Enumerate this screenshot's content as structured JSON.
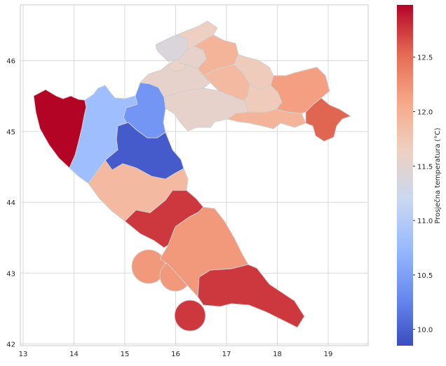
{
  "chart_data": {
    "type": "choropleth",
    "xlim": [
      12.9,
      19.8
    ],
    "ylim": [
      41.95,
      46.8
    ],
    "x_ticks": [
      "13",
      "14",
      "15",
      "16",
      "17",
      "18",
      "19"
    ],
    "y_ticks": [
      "42",
      "43",
      "44",
      "45",
      "46"
    ],
    "grid": true,
    "colorbar": {
      "label": "Prosječna temperatura (°C)",
      "min": 9.85,
      "max": 12.98,
      "ticks": [
        "10.0",
        "10.5",
        "11.0",
        "11.5",
        "12.0",
        "12.5"
      ],
      "colormap": "coolwarm",
      "colors": [
        "#3b4cc0",
        "#688aef",
        "#99baff",
        "#c9d8f0",
        "#edd1c2",
        "#f7a889",
        "#e36a53",
        "#b40426"
      ]
    },
    "regions": [
      {
        "id": "istra",
        "value": 12.98
      },
      {
        "id": "primorje-gorski-kotar",
        "value": 10.8
      },
      {
        "id": "karlovac",
        "value": 10.4
      },
      {
        "id": "lika-senj",
        "value": 9.95
      },
      {
        "id": "zadar",
        "value": 11.9
      },
      {
        "id": "sibenik-knin",
        "value": 12.75
      },
      {
        "id": "split-dalmacija",
        "value": 12.2
      },
      {
        "id": "dubrovnik-neretva",
        "value": 12.75
      },
      {
        "id": "sisak-moslavina",
        "value": 11.55
      },
      {
        "id": "zagreb-region",
        "value": 11.55
      },
      {
        "id": "krapina-zagorje",
        "value": 11.4
      },
      {
        "id": "varazdin",
        "value": 11.55
      },
      {
        "id": "medimurje",
        "value": 11.65
      },
      {
        "id": "koprivnica-krizevci",
        "value": 11.95
      },
      {
        "id": "bjelovar-bilogora",
        "value": 11.9
      },
      {
        "id": "virovitica-podravina",
        "value": 11.7
      },
      {
        "id": "pozega-slavonija",
        "value": 11.7
      },
      {
        "id": "brod-posavina",
        "value": 11.95
      },
      {
        "id": "osijek-baranja",
        "value": 12.15
      },
      {
        "id": "vukovar-srijem",
        "value": 12.55
      },
      {
        "id": "zagreb-city",
        "value": 11.6
      }
    ]
  }
}
